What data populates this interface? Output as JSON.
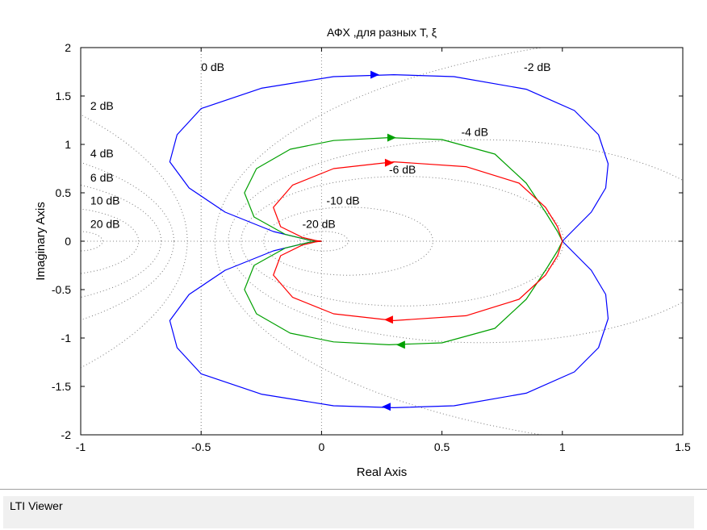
{
  "chart_data": {
    "type": "line",
    "title": "АФХ ,для разных T, ξ",
    "xlabel": "Real Axis",
    "ylabel": "Imaginary Axis",
    "xlim": [
      -1,
      1.5
    ],
    "ylim": [
      -2,
      2
    ],
    "xticks": [
      "-1",
      "-0.5",
      "0",
      "0.5",
      "1",
      "1.5"
    ],
    "yticks": [
      "2",
      "1.5",
      "1",
      "0.5",
      "0",
      "-0.5",
      "-1",
      "-1.5",
      "-2"
    ],
    "grid": "nichols-circles",
    "db_labels": [
      {
        "text": "0 dB",
        "x": -0.5,
        "y": 1.8
      },
      {
        "text": "-2 dB",
        "x": 0.84,
        "y": 1.8
      },
      {
        "text": "2 dB",
        "x": -0.96,
        "y": 1.4
      },
      {
        "text": "-4 dB",
        "x": 0.58,
        "y": 1.13
      },
      {
        "text": "4 dB",
        "x": -0.96,
        "y": 0.91
      },
      {
        "text": "-6 dB",
        "x": 0.28,
        "y": 0.74
      },
      {
        "text": "6 dB",
        "x": -0.96,
        "y": 0.66
      },
      {
        "text": "10 dB",
        "x": -0.96,
        "y": 0.42
      },
      {
        "text": "-10 dB",
        "x": 0.02,
        "y": 0.42
      },
      {
        "text": "20 dB",
        "x": -0.96,
        "y": 0.18
      },
      {
        "text": "-20 dB",
        "x": -0.08,
        "y": 0.18
      }
    ],
    "series": [
      {
        "color": "#0000ff",
        "points": [
          [
            1,
            0
          ],
          [
            1.04,
            0.1
          ],
          [
            1.12,
            0.3
          ],
          [
            1.18,
            0.55
          ],
          [
            1.19,
            0.8
          ],
          [
            1.15,
            1.1
          ],
          [
            1.05,
            1.35
          ],
          [
            0.85,
            1.57
          ],
          [
            0.55,
            1.7
          ],
          [
            0.3,
            1.72
          ],
          [
            0.05,
            1.7
          ],
          [
            -0.25,
            1.58
          ],
          [
            -0.5,
            1.37
          ],
          [
            -0.6,
            1.1
          ],
          [
            -0.63,
            0.82
          ],
          [
            -0.55,
            0.55
          ],
          [
            -0.4,
            0.3
          ],
          [
            -0.2,
            0.1
          ],
          [
            -0.05,
            0.01
          ],
          [
            0,
            0
          ]
        ]
      },
      {
        "color": "#00a000",
        "points": [
          [
            1,
            0
          ],
          [
            0.98,
            0.1
          ],
          [
            0.93,
            0.3
          ],
          [
            0.85,
            0.6
          ],
          [
            0.72,
            0.9
          ],
          [
            0.5,
            1.05
          ],
          [
            0.28,
            1.07
          ],
          [
            0.05,
            1.04
          ],
          [
            -0.13,
            0.95
          ],
          [
            -0.27,
            0.75
          ],
          [
            -0.32,
            0.5
          ],
          [
            -0.28,
            0.25
          ],
          [
            -0.15,
            0.07
          ],
          [
            -0.05,
            0.01
          ],
          [
            0,
            0
          ]
        ]
      },
      {
        "color": "#ff0000",
        "points": [
          [
            1,
            0
          ],
          [
            0.98,
            0.15
          ],
          [
            0.93,
            0.35
          ],
          [
            0.82,
            0.6
          ],
          [
            0.6,
            0.77
          ],
          [
            0.3,
            0.82
          ],
          [
            0.05,
            0.75
          ],
          [
            -0.12,
            0.58
          ],
          [
            -0.2,
            0.35
          ],
          [
            -0.17,
            0.15
          ],
          [
            -0.08,
            0.04
          ],
          [
            -0.02,
            0.005
          ],
          [
            0,
            0
          ]
        ]
      }
    ],
    "arrows": [
      {
        "color": "#0000ff",
        "x": 0.22,
        "y": 1.72,
        "dir": 1
      },
      {
        "color": "#0000ff",
        "x": 0.27,
        "y": -1.71,
        "dir": -1
      },
      {
        "color": "#00a000",
        "x": 0.29,
        "y": 1.07,
        "dir": 1
      },
      {
        "color": "#00a000",
        "x": 0.33,
        "y": -1.07,
        "dir": -1
      },
      {
        "color": "#ff0000",
        "x": 0.28,
        "y": 0.81,
        "dir": 1
      },
      {
        "color": "#ff0000",
        "x": 0.28,
        "y": -0.81,
        "dir": -1
      }
    ]
  },
  "statusbar": {
    "label": "LTI Viewer"
  }
}
